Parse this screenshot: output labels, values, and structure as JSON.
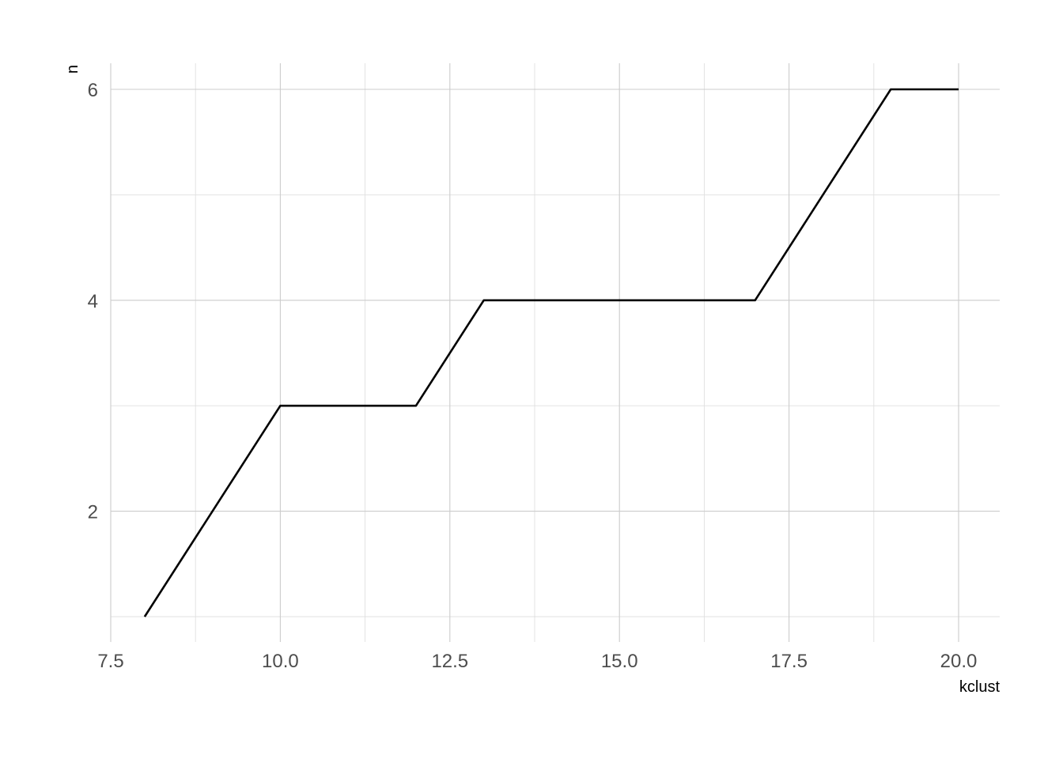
{
  "chart_data": {
    "type": "line",
    "x": [
      8,
      10,
      12,
      13,
      17,
      19,
      20
    ],
    "y": [
      1,
      3,
      3,
      4,
      4,
      6,
      6
    ],
    "xlabel": "kclust",
    "ylabel": "n",
    "xlim": [
      7.5,
      20.0
    ],
    "ylim": [
      1,
      6
    ],
    "x_ticks": [
      7.5,
      10.0,
      12.5,
      15.0,
      17.5,
      20.0
    ],
    "x_tick_labels": [
      "7.5",
      "10.0",
      "12.5",
      "15.0",
      "17.5",
      "20.0"
    ],
    "y_ticks": [
      2,
      4,
      6
    ],
    "y_tick_labels": [
      "2",
      "4",
      "6"
    ],
    "x_minor_ticks": [
      8.75,
      11.25,
      13.75,
      16.25,
      18.75
    ],
    "y_minor_ticks": [
      1,
      3,
      5
    ],
    "grid": true,
    "legend": "none",
    "line_color": "#000000"
  }
}
